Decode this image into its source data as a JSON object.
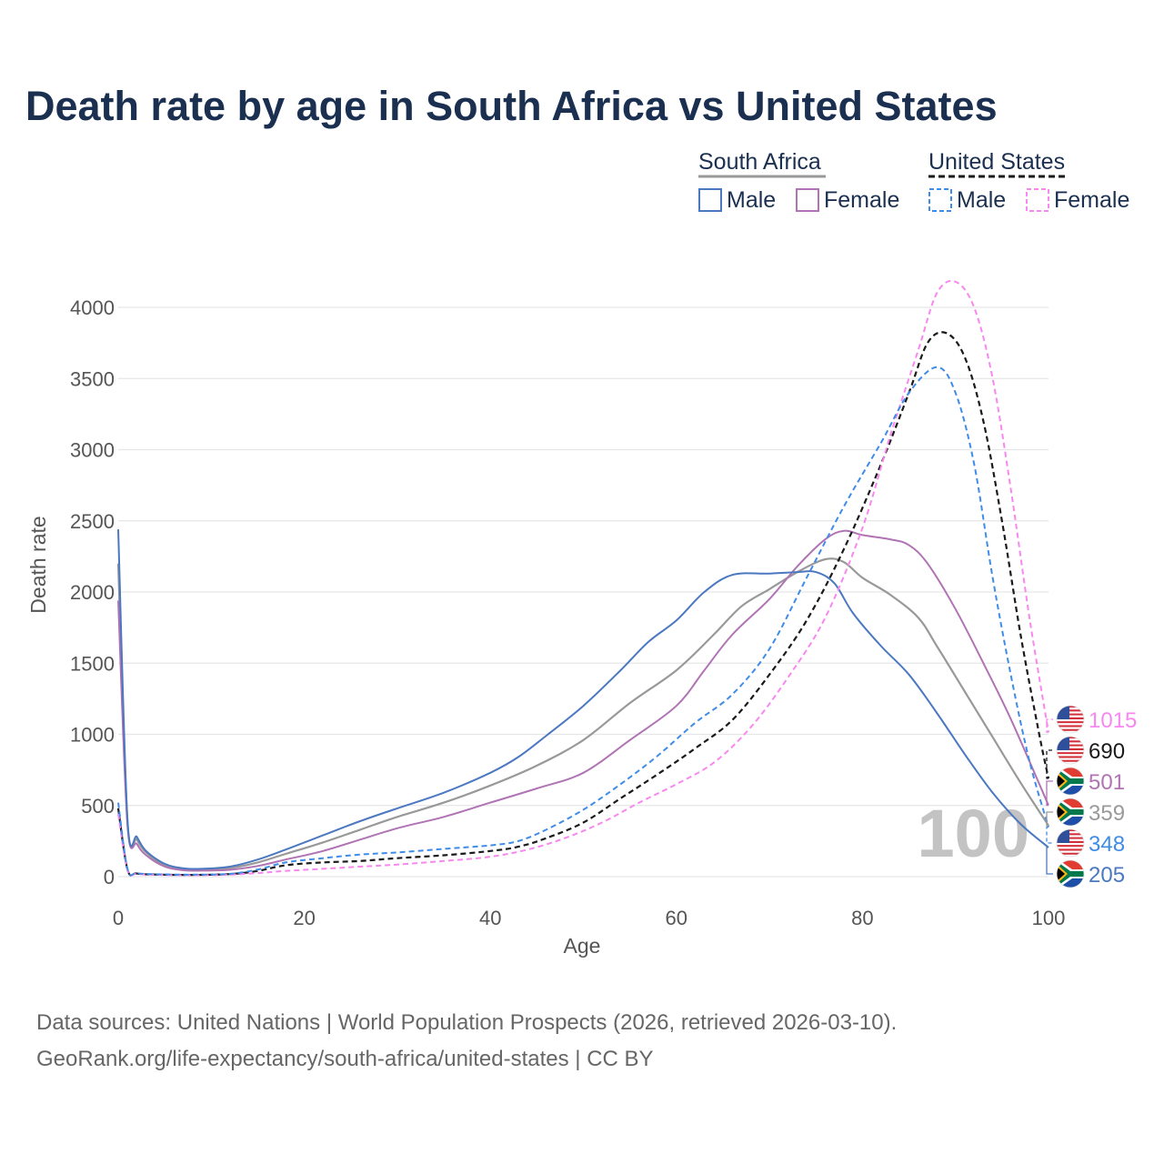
{
  "title": "Death rate by age in South Africa vs United States",
  "legend": {
    "groups": [
      {
        "name": "South Africa",
        "items": [
          "Male",
          "Female"
        ]
      },
      {
        "name": "United States",
        "items": [
          "Male",
          "Female"
        ]
      }
    ]
  },
  "big_label": "100",
  "source": {
    "line1": "Data sources: United Nations | World Population Prospects (2026, retrieved 2026-03-10).",
    "line2": "GeoRank.org/life-expectancy/south-africa/united-states | CC BY"
  },
  "colors": {
    "sa_male": "#4b78c0",
    "sa_female": "#b073b4",
    "sa_total": "#999999",
    "us_male": "#3f8ce8",
    "us_female": "#f887f0",
    "us_total": "#1a1a1a"
  },
  "chart_data": {
    "type": "line",
    "title": "Death rate by age in South Africa vs United States",
    "xlabel": "Age",
    "ylabel": "Death rate",
    "xlim": [
      0,
      100
    ],
    "ylim": [
      0,
      4000
    ],
    "x_ticks": [
      0,
      20,
      40,
      60,
      80,
      100
    ],
    "y_ticks": [
      0,
      500,
      1000,
      1500,
      2000,
      2500,
      3000,
      3500,
      4000
    ],
    "series": [
      {
        "key": "sa_total",
        "name": "South Africa",
        "country": "South Africa",
        "dash": false,
        "end_value": 359,
        "points": [
          [
            0,
            2200
          ],
          [
            1,
            380
          ],
          [
            2,
            260
          ],
          [
            3,
            170
          ],
          [
            5,
            80
          ],
          [
            7,
            52
          ],
          [
            9,
            48
          ],
          [
            12,
            60
          ],
          [
            15,
            100
          ],
          [
            18,
            160
          ],
          [
            22,
            240
          ],
          [
            26,
            330
          ],
          [
            30,
            420
          ],
          [
            35,
            520
          ],
          [
            40,
            640
          ],
          [
            45,
            780
          ],
          [
            50,
            960
          ],
          [
            55,
            1220
          ],
          [
            60,
            1450
          ],
          [
            64,
            1700
          ],
          [
            67,
            1900
          ],
          [
            70,
            2020
          ],
          [
            73,
            2140
          ],
          [
            76,
            2230
          ],
          [
            78,
            2210
          ],
          [
            80,
            2100
          ],
          [
            83,
            1980
          ],
          [
            86,
            1820
          ],
          [
            88,
            1620
          ],
          [
            91,
            1300
          ],
          [
            94,
            980
          ],
          [
            97,
            660
          ],
          [
            100,
            359
          ]
        ]
      },
      {
        "key": "sa_female",
        "name": "Female",
        "country": "South Africa",
        "dash": false,
        "end_value": 501,
        "points": [
          [
            0,
            1940
          ],
          [
            1,
            360
          ],
          [
            2,
            230
          ],
          [
            3,
            150
          ],
          [
            5,
            70
          ],
          [
            7,
            45
          ],
          [
            9,
            42
          ],
          [
            12,
            48
          ],
          [
            15,
            75
          ],
          [
            18,
            120
          ],
          [
            22,
            180
          ],
          [
            26,
            260
          ],
          [
            30,
            340
          ],
          [
            35,
            420
          ],
          [
            40,
            520
          ],
          [
            45,
            620
          ],
          [
            50,
            730
          ],
          [
            55,
            960
          ],
          [
            60,
            1200
          ],
          [
            63,
            1450
          ],
          [
            66,
            1700
          ],
          [
            70,
            1950
          ],
          [
            73,
            2180
          ],
          [
            76,
            2370
          ],
          [
            78,
            2430
          ],
          [
            80,
            2400
          ],
          [
            83,
            2370
          ],
          [
            85,
            2330
          ],
          [
            87,
            2200
          ],
          [
            90,
            1880
          ],
          [
            93,
            1500
          ],
          [
            96,
            1100
          ],
          [
            100,
            501
          ]
        ]
      },
      {
        "key": "sa_male",
        "name": "Male",
        "country": "South Africa",
        "dash": false,
        "end_value": 205,
        "points": [
          [
            0,
            2440
          ],
          [
            1,
            400
          ],
          [
            2,
            280
          ],
          [
            3,
            180
          ],
          [
            5,
            90
          ],
          [
            7,
            58
          ],
          [
            9,
            55
          ],
          [
            12,
            70
          ],
          [
            15,
            120
          ],
          [
            18,
            190
          ],
          [
            22,
            290
          ],
          [
            26,
            390
          ],
          [
            30,
            480
          ],
          [
            35,
            590
          ],
          [
            40,
            730
          ],
          [
            43,
            840
          ],
          [
            46,
            990
          ],
          [
            50,
            1200
          ],
          [
            54,
            1450
          ],
          [
            57,
            1650
          ],
          [
            60,
            1800
          ],
          [
            63,
            2000
          ],
          [
            66,
            2120
          ],
          [
            70,
            2130
          ],
          [
            73,
            2140
          ],
          [
            75,
            2140
          ],
          [
            77,
            2060
          ],
          [
            79,
            1850
          ],
          [
            82,
            1620
          ],
          [
            85,
            1420
          ],
          [
            88,
            1150
          ],
          [
            91,
            860
          ],
          [
            94,
            590
          ],
          [
            97,
            370
          ],
          [
            100,
            205
          ]
        ]
      },
      {
        "key": "us_total",
        "name": "United States",
        "country": "United States",
        "dash": true,
        "end_value": 690,
        "points": [
          [
            0,
            480
          ],
          [
            1,
            50
          ],
          [
            2,
            22
          ],
          [
            4,
            15
          ],
          [
            8,
            12
          ],
          [
            12,
            18
          ],
          [
            15,
            40
          ],
          [
            18,
            80
          ],
          [
            22,
            100
          ],
          [
            26,
            110
          ],
          [
            30,
            130
          ],
          [
            35,
            150
          ],
          [
            40,
            180
          ],
          [
            43,
            210
          ],
          [
            46,
            270
          ],
          [
            50,
            380
          ],
          [
            54,
            550
          ],
          [
            58,
            720
          ],
          [
            62,
            900
          ],
          [
            66,
            1100
          ],
          [
            70,
            1420
          ],
          [
            74,
            1800
          ],
          [
            78,
            2300
          ],
          [
            82,
            2900
          ],
          [
            85,
            3400
          ],
          [
            87,
            3750
          ],
          [
            89,
            3820
          ],
          [
            91,
            3650
          ],
          [
            93,
            3200
          ],
          [
            95,
            2500
          ],
          [
            97,
            1700
          ],
          [
            99,
            1000
          ],
          [
            100,
            690
          ]
        ]
      },
      {
        "key": "us_female",
        "name": "Female",
        "country": "United States",
        "dash": true,
        "end_value": 1015,
        "points": [
          [
            0,
            440
          ],
          [
            1,
            45
          ],
          [
            2,
            20
          ],
          [
            4,
            13
          ],
          [
            8,
            10
          ],
          [
            12,
            14
          ],
          [
            15,
            25
          ],
          [
            18,
            40
          ],
          [
            22,
            55
          ],
          [
            26,
            70
          ],
          [
            30,
            85
          ],
          [
            35,
            110
          ],
          [
            40,
            140
          ],
          [
            44,
            190
          ],
          [
            48,
            270
          ],
          [
            52,
            380
          ],
          [
            56,
            520
          ],
          [
            60,
            650
          ],
          [
            64,
            800
          ],
          [
            68,
            1050
          ],
          [
            72,
            1400
          ],
          [
            76,
            1820
          ],
          [
            80,
            2450
          ],
          [
            83,
            3100
          ],
          [
            86,
            3700
          ],
          [
            88,
            4100
          ],
          [
            90,
            4180
          ],
          [
            92,
            4000
          ],
          [
            94,
            3500
          ],
          [
            96,
            2700
          ],
          [
            98,
            1800
          ],
          [
            100,
            1015
          ]
        ]
      },
      {
        "key": "us_male",
        "name": "Male",
        "country": "United States",
        "dash": true,
        "end_value": 348,
        "points": [
          [
            0,
            520
          ],
          [
            1,
            55
          ],
          [
            2,
            25
          ],
          [
            4,
            17
          ],
          [
            8,
            14
          ],
          [
            12,
            20
          ],
          [
            15,
            50
          ],
          [
            18,
            100
          ],
          [
            22,
            130
          ],
          [
            26,
            155
          ],
          [
            30,
            170
          ],
          [
            35,
            195
          ],
          [
            40,
            220
          ],
          [
            43,
            250
          ],
          [
            46,
            330
          ],
          [
            50,
            470
          ],
          [
            54,
            650
          ],
          [
            58,
            850
          ],
          [
            62,
            1080
          ],
          [
            66,
            1280
          ],
          [
            70,
            1600
          ],
          [
            74,
            2100
          ],
          [
            78,
            2600
          ],
          [
            82,
            3050
          ],
          [
            85,
            3400
          ],
          [
            88,
            3580
          ],
          [
            90,
            3400
          ],
          [
            92,
            2900
          ],
          [
            94,
            2100
          ],
          [
            96,
            1400
          ],
          [
            98,
            800
          ],
          [
            100,
            348
          ]
        ]
      }
    ],
    "end_labels": [
      {
        "key": "us_female",
        "value": "1015",
        "flag": "us"
      },
      {
        "key": "us_total",
        "value": "690",
        "flag": "us"
      },
      {
        "key": "sa_female",
        "value": "501",
        "flag": "za"
      },
      {
        "key": "sa_total",
        "value": "359",
        "flag": "za"
      },
      {
        "key": "us_male",
        "value": "348",
        "flag": "us"
      },
      {
        "key": "sa_male",
        "value": "205",
        "flag": "za"
      }
    ]
  }
}
